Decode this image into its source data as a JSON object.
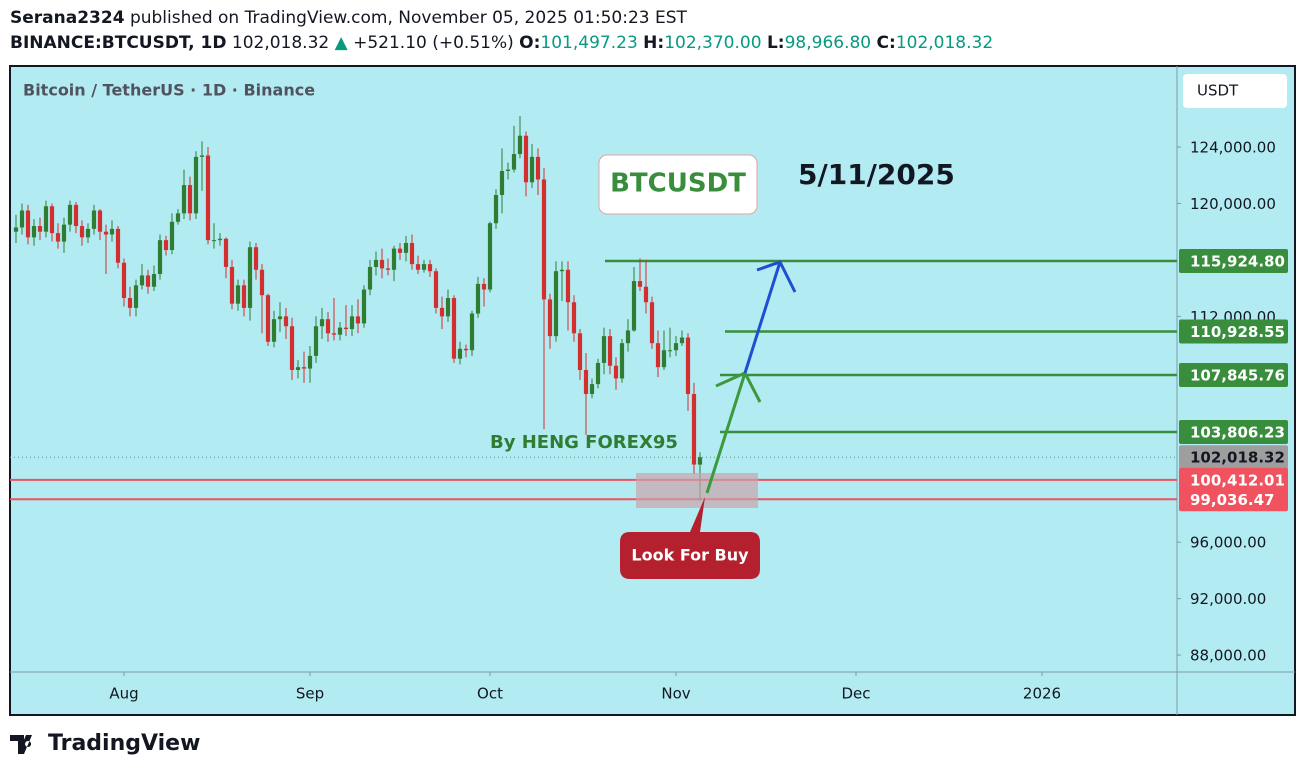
{
  "header": {
    "author": "Serana2324",
    "published": "published on TradingView.com, November 05, 2025 01:50:23 EST",
    "symbol": "BINANCE:BTCUSDT, 1D",
    "price": "102,018.32",
    "arrow": "▲",
    "change": "+521.10 (+0.51%)",
    "o_label": "O:",
    "o": "101,497.23",
    "h_label": "H:",
    "h": "102,370.00",
    "l_label": "L:",
    "l": "98,966.80",
    "c_label": "C:",
    "c": "102,018.32"
  },
  "footer": {
    "brand": "TradingView"
  },
  "chart_data": {
    "type": "candlestick",
    "title": "Bitcoin / TetherUS · 1D · Binance",
    "currency": "USDT",
    "xlim": [
      -19,
      175.5
    ],
    "xticks": [
      {
        "value": 0,
        "label": "Aug"
      },
      {
        "value": 31,
        "label": "Sep"
      },
      {
        "value": 61,
        "label": "Oct"
      },
      {
        "value": 92,
        "label": "Nov"
      },
      {
        "value": 122,
        "label": "Dec"
      },
      {
        "value": 153,
        "label": "2026"
      }
    ],
    "ylim": [
      86800,
      129740
    ],
    "yticks": [
      {
        "value": 88000,
        "label": "88,000.00"
      },
      {
        "value": 92000,
        "label": "92,000.00"
      },
      {
        "value": 96000,
        "label": "96,000.00"
      },
      {
        "value": 112000,
        "label": "112,000.00"
      },
      {
        "value": 120000,
        "label": "120,000.00"
      },
      {
        "value": 124000,
        "label": "124,000.00"
      }
    ],
    "grid": false,
    "up_color": "#2e7d32",
    "down_color": "#d32f2f",
    "x": [
      -18,
      -17,
      -16,
      -15,
      -14,
      -13,
      -12,
      -11,
      -10,
      -9,
      -8,
      -7,
      -6,
      -5,
      -4,
      -3,
      -2,
      -1,
      0,
      1,
      2,
      3,
      4,
      5,
      6,
      7,
      8,
      9,
      10,
      11,
      12,
      13,
      14,
      15,
      16,
      17,
      18,
      19,
      20,
      21,
      22,
      23,
      24,
      25,
      26,
      27,
      28,
      29,
      30,
      31,
      32,
      33,
      34,
      35,
      36,
      37,
      38,
      39,
      40,
      41,
      42,
      43,
      44,
      45,
      46,
      47,
      48,
      49,
      50,
      51,
      52,
      53,
      54,
      55,
      56,
      57,
      58,
      59,
      60,
      61,
      62,
      63,
      64,
      65,
      66,
      67,
      68,
      69,
      70,
      71,
      72,
      73,
      74,
      75,
      76,
      77,
      78,
      79,
      80,
      81,
      82,
      83,
      84,
      85,
      86,
      87,
      88,
      89,
      90,
      91,
      92,
      93,
      94,
      95,
      96
    ],
    "ohlc": [
      [
        118000,
        119200,
        117200,
        118300
      ],
      [
        118300,
        120000,
        117800,
        119500
      ],
      [
        119500,
        119900,
        117100,
        117600
      ],
      [
        117600,
        118900,
        117000,
        118400
      ],
      [
        118400,
        119000,
        117400,
        118000
      ],
      [
        118000,
        120200,
        117600,
        119800
      ],
      [
        119800,
        120000,
        117300,
        117900
      ],
      [
        117900,
        118600,
        116800,
        117300
      ],
      [
        117300,
        119000,
        116500,
        118500
      ],
      [
        118500,
        120200,
        118000,
        119900
      ],
      [
        119900,
        120100,
        117900,
        118400
      ],
      [
        118400,
        118800,
        117000,
        117600
      ],
      [
        117600,
        118600,
        117200,
        118200
      ],
      [
        118200,
        119900,
        117800,
        119500
      ],
      [
        119500,
        119600,
        117400,
        118000
      ],
      [
        118000,
        118500,
        115000,
        117800
      ],
      [
        117800,
        118800,
        117300,
        118200
      ],
      [
        118200,
        118400,
        115400,
        115800
      ],
      [
        115800,
        116100,
        112700,
        113300
      ],
      [
        113300,
        114100,
        112000,
        112600
      ],
      [
        112600,
        114600,
        112000,
        114200
      ],
      [
        114200,
        115700,
        113900,
        114900
      ],
      [
        114900,
        115300,
        113600,
        114100
      ],
      [
        114100,
        115600,
        113800,
        115000
      ],
      [
        115000,
        117800,
        114600,
        117400
      ],
      [
        117400,
        117700,
        116300,
        116700
      ],
      [
        116700,
        119300,
        116400,
        118700
      ],
      [
        118700,
        119600,
        118500,
        119300
      ],
      [
        119300,
        122400,
        118900,
        121300
      ],
      [
        121300,
        121900,
        118800,
        119300
      ],
      [
        119300,
        123700,
        118900,
        123300
      ],
      [
        123300,
        124400,
        120900,
        123400
      ],
      [
        123400,
        124000,
        117100,
        117400
      ],
      [
        117400,
        118600,
        116800,
        117400
      ],
      [
        117400,
        117900,
        117000,
        117500
      ],
      [
        117500,
        117600,
        114700,
        115500
      ],
      [
        115500,
        116000,
        112500,
        112900
      ],
      [
        112900,
        114600,
        112400,
        114200
      ],
      [
        114200,
        114600,
        112000,
        112600
      ],
      [
        112600,
        117300,
        111700,
        116900
      ],
      [
        116900,
        117200,
        114600,
        115300
      ],
      [
        115300,
        115700,
        110800,
        113500
      ],
      [
        113500,
        113600,
        109900,
        110200
      ],
      [
        110200,
        112400,
        109800,
        111800
      ],
      [
        111800,
        113000,
        110900,
        112000
      ],
      [
        112000,
        112600,
        110400,
        111300
      ],
      [
        111300,
        111900,
        107500,
        108200
      ],
      [
        108200,
        108900,
        107600,
        108400
      ],
      [
        108400,
        109500,
        107300,
        108300
      ],
      [
        108300,
        109900,
        107300,
        109200
      ],
      [
        109200,
        112000,
        108700,
        111300
      ],
      [
        111300,
        112600,
        110400,
        111800
      ],
      [
        111800,
        112300,
        110200,
        110800
      ],
      [
        110800,
        113300,
        110300,
        110700
      ],
      [
        110700,
        111600,
        110300,
        111200
      ],
      [
        111200,
        112800,
        110600,
        111100
      ],
      [
        111100,
        112800,
        110600,
        112000
      ],
      [
        112000,
        113200,
        110800,
        111500
      ],
      [
        111500,
        114200,
        111200,
        113900
      ],
      [
        113900,
        116000,
        113500,
        115500
      ],
      [
        115500,
        116600,
        114900,
        116000
      ],
      [
        116000,
        116800,
        114700,
        115400
      ],
      [
        115400,
        116100,
        114900,
        115300
      ],
      [
        115300,
        117000,
        114500,
        116800
      ],
      [
        116800,
        117200,
        116000,
        116500
      ],
      [
        116500,
        117700,
        115900,
        117200
      ],
      [
        117200,
        117800,
        115300,
        115700
      ],
      [
        115700,
        116300,
        115000,
        115300
      ],
      [
        115300,
        116000,
        115100,
        115700
      ],
      [
        115700,
        116000,
        114800,
        115200
      ],
      [
        115200,
        115400,
        112200,
        112600
      ],
      [
        112600,
        113400,
        111100,
        112000
      ],
      [
        112000,
        113900,
        111600,
        113300
      ],
      [
        113300,
        113500,
        108700,
        109000
      ],
      [
        109000,
        110200,
        108600,
        109700
      ],
      [
        109700,
        110000,
        109100,
        109600
      ],
      [
        109600,
        112400,
        109200,
        112200
      ],
      [
        112200,
        114800,
        111900,
        114300
      ],
      [
        114300,
        114700,
        112700,
        113900
      ],
      [
        113900,
        118700,
        113700,
        118600
      ],
      [
        118600,
        121000,
        118200,
        120600
      ],
      [
        120600,
        123900,
        119300,
        122300
      ],
      [
        122300,
        122900,
        121700,
        122400
      ],
      [
        122400,
        125500,
        122200,
        123500
      ],
      [
        123500,
        126200,
        123200,
        124800
      ],
      [
        124800,
        125100,
        120500,
        121500
      ],
      [
        121500,
        124200,
        121100,
        123300
      ],
      [
        123300,
        123900,
        120600,
        121700
      ],
      [
        121700,
        122500,
        104000,
        113200
      ],
      [
        113200,
        113600,
        109700,
        110600
      ],
      [
        110600,
        115900,
        110200,
        115200
      ],
      [
        115200,
        115900,
        113100,
        115300
      ],
      [
        115300,
        115900,
        111000,
        113000
      ],
      [
        113000,
        113500,
        110200,
        110800
      ],
      [
        110800,
        111100,
        107500,
        108200
      ],
      [
        108200,
        109400,
        103600,
        106500
      ],
      [
        106500,
        107600,
        106200,
        107200
      ],
      [
        107200,
        109000,
        106900,
        108700
      ],
      [
        108700,
        111200,
        107900,
        110600
      ],
      [
        110600,
        111100,
        107900,
        108500
      ],
      [
        108500,
        109100,
        106800,
        107600
      ],
      [
        107600,
        110400,
        107300,
        110100
      ],
      [
        110100,
        111800,
        109500,
        111000
      ],
      [
        111000,
        115500,
        110900,
        114500
      ],
      [
        114500,
        116100,
        113800,
        114100
      ],
      [
        114100,
        116000,
        112200,
        113000
      ],
      [
        113000,
        113400,
        109700,
        110100
      ],
      [
        110100,
        111000,
        107700,
        108400
      ],
      [
        108400,
        111000,
        108200,
        109600
      ],
      [
        109600,
        111200,
        109100,
        109600
      ],
      [
        109600,
        110600,
        109200,
        110100
      ],
      [
        110100,
        111000,
        109900,
        110500
      ],
      [
        110500,
        110800,
        105300,
        106500
      ],
      [
        106500,
        107300,
        100800,
        101500
      ],
      [
        101497.23,
        102370,
        98966.8,
        102018.32
      ]
    ],
    "levels": [
      {
        "value": 115924.8,
        "label": "115,924.80"
      },
      {
        "value": 110928.55,
        "label": "110,928.55"
      },
      {
        "value": 107845.76,
        "label": "107,845.76"
      },
      {
        "value": 103806.23,
        "label": "103,806.23"
      }
    ],
    "level_color": "#388e3c",
    "supports": [
      {
        "value": 100412.01,
        "label": "100,412.01"
      },
      {
        "value": 99036.47,
        "label": "99,036.47"
      }
    ],
    "support_color": "#f0525f",
    "last": {
      "value": 102018.32,
      "label": "102,018.32"
    },
    "annotations": {
      "symbol_box": "BTCUSDT",
      "date": "5/11/2025",
      "author": "By HENG FOREX95",
      "callout": "Look For Buy"
    }
  }
}
